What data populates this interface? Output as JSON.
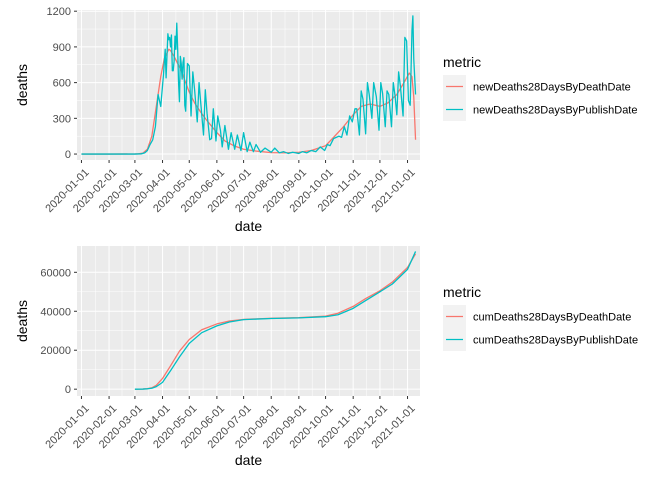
{
  "chart_data": [
    {
      "type": "line",
      "xlabel": "date",
      "ylabel": "deaths",
      "x_ticks": [
        "2020-01-01",
        "2020-02-01",
        "2020-03-01",
        "2020-04-01",
        "2020-05-01",
        "2020-06-01",
        "2020-07-01",
        "2020-08-01",
        "2020-09-01",
        "2020-10-01",
        "2020-11-01",
        "2020-12-01",
        "2021-01-01"
      ],
      "y_ticks": [
        0,
        300,
        600,
        900,
        1200
      ],
      "xlim": [
        "2019-12-27",
        "2021-01-15"
      ],
      "ylim": [
        -50,
        1210
      ],
      "grid": true,
      "legend": {
        "title": "metric",
        "position": "right"
      },
      "series": [
        {
          "name": "newDeaths28DaysByDeathDate",
          "color": "#F8766D",
          "points": [
            [
              "2020-01-01",
              0
            ],
            [
              "2020-02-01",
              0
            ],
            [
              "2020-03-01",
              1
            ],
            [
              "2020-03-05",
              2
            ],
            [
              "2020-03-10",
              8
            ],
            [
              "2020-03-15",
              40
            ],
            [
              "2020-03-20",
              150
            ],
            [
              "2020-03-25",
              400
            ],
            [
              "2020-03-30",
              650
            ],
            [
              "2020-04-03",
              800
            ],
            [
              "2020-04-06",
              850
            ],
            [
              "2020-04-08",
              880
            ],
            [
              "2020-04-10",
              870
            ],
            [
              "2020-04-14",
              820
            ],
            [
              "2020-04-18",
              760
            ],
            [
              "2020-04-22",
              700
            ],
            [
              "2020-04-26",
              620
            ],
            [
              "2020-05-01",
              520
            ],
            [
              "2020-05-07",
              430
            ],
            [
              "2020-05-14",
              350
            ],
            [
              "2020-05-21",
              280
            ],
            [
              "2020-06-01",
              180
            ],
            [
              "2020-06-10",
              110
            ],
            [
              "2020-06-20",
              70
            ],
            [
              "2020-07-01",
              40
            ],
            [
              "2020-07-15",
              25
            ],
            [
              "2020-08-01",
              12
            ],
            [
              "2020-08-15",
              10
            ],
            [
              "2020-09-01",
              15
            ],
            [
              "2020-09-15",
              30
            ],
            [
              "2020-10-01",
              70
            ],
            [
              "2020-10-10",
              140
            ],
            [
              "2020-10-20",
              220
            ],
            [
              "2020-11-01",
              330
            ],
            [
              "2020-11-10",
              400
            ],
            [
              "2020-11-20",
              420
            ],
            [
              "2020-12-01",
              400
            ],
            [
              "2020-12-10",
              430
            ],
            [
              "2020-12-20",
              500
            ],
            [
              "2020-12-28",
              600
            ],
            [
              "2021-01-03",
              680
            ],
            [
              "2021-01-06",
              650
            ],
            [
              "2021-01-08",
              480
            ],
            [
              "2021-01-10",
              120
            ]
          ]
        },
        {
          "name": "newDeaths28DaysByPublishDate",
          "color": "#00BFC4",
          "points": [
            [
              "2020-01-01",
              0
            ],
            [
              "2020-03-01",
              0
            ],
            [
              "2020-03-08",
              2
            ],
            [
              "2020-03-12",
              10
            ],
            [
              "2020-03-15",
              30
            ],
            [
              "2020-03-18",
              80
            ],
            [
              "2020-03-21",
              120
            ],
            [
              "2020-03-24",
              230
            ],
            [
              "2020-03-27",
              500
            ],
            [
              "2020-03-30",
              400
            ],
            [
              "2020-04-02",
              660
            ],
            [
              "2020-04-04",
              880
            ],
            [
              "2020-04-05",
              640
            ],
            [
              "2020-04-07",
              1010
            ],
            [
              "2020-04-08",
              960
            ],
            [
              "2020-04-09",
              980
            ],
            [
              "2020-04-10",
              900
            ],
            [
              "2020-04-11",
              1000
            ],
            [
              "2020-04-12",
              700
            ],
            [
              "2020-04-13",
              700
            ],
            [
              "2020-04-14",
              780
            ],
            [
              "2020-04-15",
              990
            ],
            [
              "2020-04-16",
              880
            ],
            [
              "2020-04-17",
              1100
            ],
            [
              "2020-04-18",
              880
            ],
            [
              "2020-04-19",
              600
            ],
            [
              "2020-04-20",
              440
            ],
            [
              "2020-04-21",
              820
            ],
            [
              "2020-04-22",
              760
            ],
            [
              "2020-04-23",
              630
            ],
            [
              "2020-04-24",
              770
            ],
            [
              "2020-04-25",
              810
            ],
            [
              "2020-04-26",
              410
            ],
            [
              "2020-04-27",
              360
            ],
            [
              "2020-04-28",
              590
            ],
            [
              "2020-04-29",
              760
            ],
            [
              "2020-05-01",
              740
            ],
            [
              "2020-05-03",
              320
            ],
            [
              "2020-05-05",
              690
            ],
            [
              "2020-05-07",
              540
            ],
            [
              "2020-05-10",
              270
            ],
            [
              "2020-05-12",
              600
            ],
            [
              "2020-05-14",
              420
            ],
            [
              "2020-05-17",
              160
            ],
            [
              "2020-05-19",
              540
            ],
            [
              "2020-05-21",
              340
            ],
            [
              "2020-05-24",
              120
            ],
            [
              "2020-05-26",
              130
            ],
            [
              "2020-05-28",
              380
            ],
            [
              "2020-05-31",
              110
            ],
            [
              "2020-06-02",
              320
            ],
            [
              "2020-06-05",
              200
            ],
            [
              "2020-06-07",
              60
            ],
            [
              "2020-06-10",
              240
            ],
            [
              "2020-06-14",
              40
            ],
            [
              "2020-06-17",
              180
            ],
            [
              "2020-06-21",
              40
            ],
            [
              "2020-06-24",
              160
            ],
            [
              "2020-06-28",
              30
            ],
            [
              "2020-07-01",
              180
            ],
            [
              "2020-07-05",
              20
            ],
            [
              "2020-07-08",
              100
            ],
            [
              "2020-07-12",
              20
            ],
            [
              "2020-07-15",
              80
            ],
            [
              "2020-07-20",
              15
            ],
            [
              "2020-07-25",
              50
            ],
            [
              "2020-08-01",
              15
            ],
            [
              "2020-08-05",
              50
            ],
            [
              "2020-08-10",
              10
            ],
            [
              "2020-08-15",
              20
            ],
            [
              "2020-08-20",
              5
            ],
            [
              "2020-08-25",
              15
            ],
            [
              "2020-09-01",
              5
            ],
            [
              "2020-09-05",
              20
            ],
            [
              "2020-09-10",
              10
            ],
            [
              "2020-09-15",
              30
            ],
            [
              "2020-09-20",
              20
            ],
            [
              "2020-09-25",
              60
            ],
            [
              "2020-09-30",
              30
            ],
            [
              "2020-10-03",
              80
            ],
            [
              "2020-10-06",
              70
            ],
            [
              "2020-10-10",
              130
            ],
            [
              "2020-10-13",
              140
            ],
            [
              "2020-10-16",
              150
            ],
            [
              "2020-10-19",
              140
            ],
            [
              "2020-10-22",
              230
            ],
            [
              "2020-10-25",
              160
            ],
            [
              "2020-10-28",
              320
            ],
            [
              "2020-10-31",
              270
            ],
            [
              "2020-11-03",
              380
            ],
            [
              "2020-11-05",
              380
            ],
            [
              "2020-11-08",
              160
            ],
            [
              "2020-11-10",
              530
            ],
            [
              "2020-11-12",
              460
            ],
            [
              "2020-11-15",
              170
            ],
            [
              "2020-11-17",
              600
            ],
            [
              "2020-11-19",
              500
            ],
            [
              "2020-11-22",
              300
            ],
            [
              "2020-11-24",
              600
            ],
            [
              "2020-11-27",
              480
            ],
            [
              "2020-11-30",
              200
            ],
            [
              "2020-12-02",
              600
            ],
            [
              "2020-12-04",
              510
            ],
            [
              "2020-12-07",
              230
            ],
            [
              "2020-12-09",
              530
            ],
            [
              "2020-12-11",
              500
            ],
            [
              "2020-12-14",
              230
            ],
            [
              "2020-12-16",
              600
            ],
            [
              "2020-12-18",
              490
            ],
            [
              "2020-12-20",
              330
            ],
            [
              "2020-12-22",
              690
            ],
            [
              "2020-12-24",
              570
            ],
            [
              "2020-12-27",
              320
            ],
            [
              "2020-12-29",
              980
            ],
            [
              "2020-12-31",
              950
            ],
            [
              "2021-01-02",
              450
            ],
            [
              "2021-01-04",
              410
            ],
            [
              "2021-01-06",
              1040
            ],
            [
              "2021-01-07",
              1160
            ],
            [
              "2021-01-08",
              800
            ],
            [
              "2021-01-10",
              500
            ]
          ]
        }
      ]
    },
    {
      "type": "line",
      "xlabel": "date",
      "ylabel": "deaths",
      "x_ticks": [
        "2020-01-01",
        "2020-02-01",
        "2020-03-01",
        "2020-04-01",
        "2020-05-01",
        "2020-06-01",
        "2020-07-01",
        "2020-08-01",
        "2020-09-01",
        "2020-10-01",
        "2020-11-01",
        "2020-12-01",
        "2021-01-01"
      ],
      "y_ticks": [
        0,
        20000,
        40000,
        60000
      ],
      "xlim": [
        "2019-12-27",
        "2021-01-15"
      ],
      "ylim": [
        -3500,
        73500
      ],
      "grid": true,
      "legend": {
        "title": "metric",
        "position": "right"
      },
      "series": [
        {
          "name": "cumDeaths28DaysByDeathDate",
          "color": "#F8766D",
          "points": [
            [
              "2020-03-01",
              0
            ],
            [
              "2020-03-10",
              50
            ],
            [
              "2020-03-15",
              300
            ],
            [
              "2020-03-20",
              700
            ],
            [
              "2020-03-25",
              2000
            ],
            [
              "2020-04-01",
              5500
            ],
            [
              "2020-04-10",
              12000
            ],
            [
              "2020-04-20",
              19500
            ],
            [
              "2020-05-01",
              25500
            ],
            [
              "2020-05-15",
              30500
            ],
            [
              "2020-06-01",
              33500
            ],
            [
              "2020-06-15",
              35000
            ],
            [
              "2020-07-01",
              35800
            ],
            [
              "2020-08-01",
              36400
            ],
            [
              "2020-09-01",
              36700
            ],
            [
              "2020-10-01",
              37500
            ],
            [
              "2020-10-15",
              39000
            ],
            [
              "2020-11-01",
              42500
            ],
            [
              "2020-11-15",
              46500
            ],
            [
              "2020-12-01",
              50500
            ],
            [
              "2020-12-15",
              55000
            ],
            [
              "2021-01-01",
              62500
            ],
            [
              "2021-01-10",
              69500
            ]
          ]
        },
        {
          "name": "cumDeaths28DaysByPublishDate",
          "color": "#00BFC4",
          "points": [
            [
              "2020-03-01",
              0
            ],
            [
              "2020-03-10",
              50
            ],
            [
              "2020-03-15",
              200
            ],
            [
              "2020-03-20",
              500
            ],
            [
              "2020-03-25",
              1300
            ],
            [
              "2020-04-01",
              3500
            ],
            [
              "2020-04-10",
              9500
            ],
            [
              "2020-04-20",
              16500
            ],
            [
              "2020-05-01",
              23500
            ],
            [
              "2020-05-15",
              29000
            ],
            [
              "2020-06-01",
              32500
            ],
            [
              "2020-06-15",
              34500
            ],
            [
              "2020-07-01",
              35700
            ],
            [
              "2020-08-01",
              36300
            ],
            [
              "2020-09-01",
              36600
            ],
            [
              "2020-10-01",
              37200
            ],
            [
              "2020-10-15",
              38200
            ],
            [
              "2020-11-01",
              41500
            ],
            [
              "2020-11-15",
              45500
            ],
            [
              "2020-12-01",
              50000
            ],
            [
              "2020-12-15",
              54000
            ],
            [
              "2021-01-01",
              61500
            ],
            [
              "2021-01-10",
              70700
            ]
          ]
        }
      ]
    }
  ]
}
